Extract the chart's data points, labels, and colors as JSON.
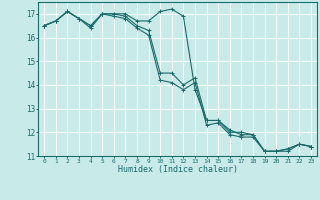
{
  "xlabel": "Humidex (Indice chaleur)",
  "bg_color": "#c8eae8",
  "line_color": "#1a6b6b",
  "grid_major_color": "#ffffff",
  "xlim": [
    -0.5,
    23.5
  ],
  "ylim": [
    11,
    17.5
  ],
  "yticks": [
    11,
    12,
    13,
    14,
    15,
    16,
    17
  ],
  "xticks": [
    0,
    1,
    2,
    3,
    4,
    5,
    6,
    7,
    8,
    9,
    10,
    11,
    12,
    13,
    14,
    15,
    16,
    17,
    18,
    19,
    20,
    21,
    22,
    23
  ],
  "series": [
    [
      16.5,
      16.7,
      17.1,
      16.8,
      16.5,
      17.0,
      17.0,
      17.0,
      16.7,
      16.7,
      17.1,
      17.2,
      16.9,
      13.8,
      12.5,
      12.5,
      12.1,
      11.9,
      11.9,
      11.2,
      11.2,
      11.3,
      11.5,
      11.4
    ],
    [
      16.5,
      16.7,
      17.1,
      16.8,
      16.5,
      17.0,
      17.0,
      16.9,
      16.5,
      16.3,
      14.5,
      14.5,
      14.0,
      14.3,
      12.5,
      12.5,
      12.0,
      12.0,
      11.9,
      11.2,
      11.2,
      11.3,
      11.5,
      11.4
    ],
    [
      16.5,
      16.7,
      17.1,
      16.8,
      16.4,
      17.0,
      16.9,
      16.8,
      16.4,
      16.1,
      14.2,
      14.1,
      13.8,
      14.1,
      12.3,
      12.4,
      11.9,
      11.8,
      11.8,
      11.2,
      11.2,
      11.2,
      11.5,
      11.4
    ]
  ]
}
